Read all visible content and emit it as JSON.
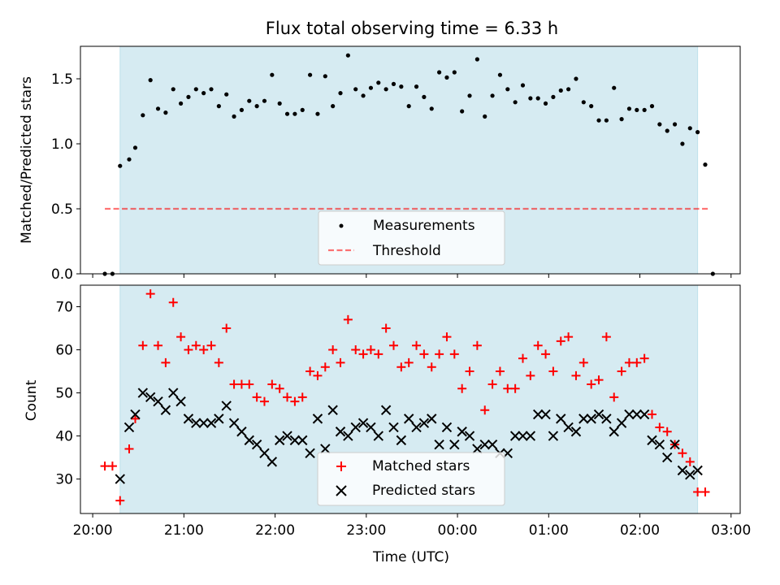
{
  "figure": {
    "title": "Flux total observing time = 6.33 h",
    "xlabel": "Time (UTC)",
    "colors": {
      "shade": "#add8e6",
      "measurement": "#000000",
      "threshold": "#ff0000",
      "matched": "#ff0000",
      "predicted": "#000000"
    }
  },
  "chart_data": [
    {
      "type": "scatter",
      "xaxis": "UTC time; values in hours since 20:00 (values > 4 wrap past midnight)",
      "ylabel": "Matched/Predicted stars",
      "ylim": [
        0,
        1.75
      ],
      "yticks": [
        "0.0",
        "0.5",
        "1.0",
        "1.5"
      ],
      "grid": false,
      "legend_position": "lower center",
      "shaded_interval": [
        "20:18",
        "02:38"
      ],
      "threshold": {
        "name": "Threshold",
        "value": 0.5,
        "style": "dashed",
        "x_range": [
          "20:08",
          "02:45"
        ]
      },
      "series": [
        {
          "name": "Measurements",
          "points": [
            [
              "20:08",
              0.0
            ],
            [
              "20:13",
              0.0
            ],
            [
              "20:18",
              0.83
            ],
            [
              "20:24",
              0.88
            ],
            [
              "20:28",
              0.97
            ],
            [
              "20:33",
              1.22
            ],
            [
              "20:38",
              1.49
            ],
            [
              "20:43",
              1.27
            ],
            [
              "20:48",
              1.24
            ],
            [
              "20:53",
              1.42
            ],
            [
              "20:58",
              1.31
            ],
            [
              "21:03",
              1.36
            ],
            [
              "21:08",
              1.42
            ],
            [
              "21:13",
              1.39
            ],
            [
              "21:18",
              1.42
            ],
            [
              "21:23",
              1.29
            ],
            [
              "21:28",
              1.38
            ],
            [
              "21:33",
              1.21
            ],
            [
              "21:38",
              1.26
            ],
            [
              "21:43",
              1.33
            ],
            [
              "21:48",
              1.29
            ],
            [
              "21:53",
              1.33
            ],
            [
              "21:58",
              1.53
            ],
            [
              "22:03",
              1.31
            ],
            [
              "22:08",
              1.23
            ],
            [
              "22:13",
              1.23
            ],
            [
              "22:18",
              1.26
            ],
            [
              "22:23",
              1.53
            ],
            [
              "22:28",
              1.23
            ],
            [
              "22:33",
              1.52
            ],
            [
              "22:38",
              1.29
            ],
            [
              "22:43",
              1.39
            ],
            [
              "22:48",
              1.68
            ],
            [
              "22:53",
              1.42
            ],
            [
              "22:58",
              1.37
            ],
            [
              "23:03",
              1.43
            ],
            [
              "23:08",
              1.47
            ],
            [
              "23:13",
              1.42
            ],
            [
              "23:18",
              1.46
            ],
            [
              "23:23",
              1.44
            ],
            [
              "23:28",
              1.29
            ],
            [
              "23:33",
              1.44
            ],
            [
              "23:38",
              1.36
            ],
            [
              "23:43",
              1.27
            ],
            [
              "23:48",
              1.55
            ],
            [
              "23:53",
              1.51
            ],
            [
              "23:58",
              1.55
            ],
            [
              "00:03",
              1.25
            ],
            [
              "00:08",
              1.37
            ],
            [
              "00:13",
              1.65
            ],
            [
              "00:18",
              1.21
            ],
            [
              "00:23",
              1.37
            ],
            [
              "00:28",
              1.53
            ],
            [
              "00:33",
              1.42
            ],
            [
              "00:38",
              1.32
            ],
            [
              "00:43",
              1.45
            ],
            [
              "00:48",
              1.35
            ],
            [
              "00:53",
              1.35
            ],
            [
              "00:58",
              1.31
            ],
            [
              "01:03",
              1.36
            ],
            [
              "01:08",
              1.41
            ],
            [
              "01:13",
              1.42
            ],
            [
              "01:18",
              1.5
            ],
            [
              "01:23",
              1.32
            ],
            [
              "01:28",
              1.29
            ],
            [
              "01:33",
              1.18
            ],
            [
              "01:38",
              1.18
            ],
            [
              "01:43",
              1.43
            ],
            [
              "01:48",
              1.19
            ],
            [
              "01:53",
              1.27
            ],
            [
              "01:58",
              1.26
            ],
            [
              "02:03",
              1.26
            ],
            [
              "02:08",
              1.29
            ],
            [
              "02:13",
              1.15
            ],
            [
              "02:18",
              1.1
            ],
            [
              "02:23",
              1.15
            ],
            [
              "02:28",
              1.0
            ],
            [
              "02:33",
              1.12
            ],
            [
              "02:38",
              1.09
            ],
            [
              "02:43",
              0.84
            ],
            [
              "02:48",
              0.0
            ]
          ]
        }
      ]
    },
    {
      "type": "scatter",
      "xaxis": "UTC time; values in hours since 20:00",
      "xlabel": "Time (UTC)",
      "ylabel": "Count",
      "ylim": [
        22,
        75
      ],
      "yticks": [
        "30",
        "40",
        "50",
        "60",
        "70"
      ],
      "xticks": [
        "20:00",
        "21:00",
        "22:00",
        "23:00",
        "00:00",
        "01:00",
        "02:00",
        "03:00"
      ],
      "xlim": [
        "19:52",
        "03:04"
      ],
      "grid": false,
      "legend_position": "lower center",
      "shaded_interval": [
        "20:18",
        "02:38"
      ],
      "series": [
        {
          "name": "Matched stars",
          "marker": "+",
          "color": "#ff0000",
          "points": [
            [
              "20:08",
              33
            ],
            [
              "20:13",
              33
            ],
            [
              "20:18",
              25
            ],
            [
              "20:24",
              37
            ],
            [
              "20:28",
              44
            ],
            [
              "20:33",
              61
            ],
            [
              "20:38",
              73
            ],
            [
              "20:43",
              61
            ],
            [
              "20:48",
              57
            ],
            [
              "20:53",
              71
            ],
            [
              "20:58",
              63
            ],
            [
              "21:03",
              60
            ],
            [
              "21:08",
              61
            ],
            [
              "21:13",
              60
            ],
            [
              "21:18",
              61
            ],
            [
              "21:23",
              57
            ],
            [
              "21:28",
              65
            ],
            [
              "21:33",
              52
            ],
            [
              "21:38",
              52
            ],
            [
              "21:43",
              52
            ],
            [
              "21:48",
              49
            ],
            [
              "21:53",
              48
            ],
            [
              "21:58",
              52
            ],
            [
              "22:03",
              51
            ],
            [
              "22:08",
              49
            ],
            [
              "22:13",
              48
            ],
            [
              "22:18",
              49
            ],
            [
              "22:23",
              55
            ],
            [
              "22:28",
              54
            ],
            [
              "22:33",
              56
            ],
            [
              "22:38",
              60
            ],
            [
              "22:43",
              57
            ],
            [
              "22:48",
              67
            ],
            [
              "22:53",
              60
            ],
            [
              "22:58",
              59
            ],
            [
              "23:03",
              60
            ],
            [
              "23:08",
              59
            ],
            [
              "23:13",
              65
            ],
            [
              "23:18",
              61
            ],
            [
              "23:23",
              56
            ],
            [
              "23:28",
              57
            ],
            [
              "23:33",
              61
            ],
            [
              "23:38",
              59
            ],
            [
              "23:43",
              56
            ],
            [
              "23:48",
              59
            ],
            [
              "23:53",
              63
            ],
            [
              "23:58",
              59
            ],
            [
              "00:03",
              51
            ],
            [
              "00:08",
              55
            ],
            [
              "00:13",
              61
            ],
            [
              "00:18",
              46
            ],
            [
              "00:23",
              52
            ],
            [
              "00:28",
              55
            ],
            [
              "00:33",
              51
            ],
            [
              "00:38",
              51
            ],
            [
              "00:43",
              58
            ],
            [
              "00:48",
              54
            ],
            [
              "00:53",
              61
            ],
            [
              "00:58",
              59
            ],
            [
              "01:03",
              55
            ],
            [
              "01:08",
              62
            ],
            [
              "01:13",
              63
            ],
            [
              "01:18",
              54
            ],
            [
              "01:23",
              57
            ],
            [
              "01:28",
              52
            ],
            [
              "01:33",
              53
            ],
            [
              "01:38",
              63
            ],
            [
              "01:43",
              49
            ],
            [
              "01:48",
              55
            ],
            [
              "01:53",
              57
            ],
            [
              "01:58",
              57
            ],
            [
              "02:03",
              58
            ],
            [
              "02:08",
              45
            ],
            [
              "02:13",
              42
            ],
            [
              "02:18",
              41
            ],
            [
              "02:23",
              38
            ],
            [
              "02:28",
              36
            ],
            [
              "02:33",
              34
            ],
            [
              "02:38",
              27
            ],
            [
              "02:43",
              27
            ]
          ]
        },
        {
          "name": "Predicted stars",
          "marker": "x",
          "color": "#000000",
          "points": [
            [
              "20:18",
              30
            ],
            [
              "20:24",
              42
            ],
            [
              "20:28",
              45
            ],
            [
              "20:33",
              50
            ],
            [
              "20:38",
              49
            ],
            [
              "20:43",
              48
            ],
            [
              "20:48",
              46
            ],
            [
              "20:53",
              50
            ],
            [
              "20:58",
              48
            ],
            [
              "21:03",
              44
            ],
            [
              "21:08",
              43
            ],
            [
              "21:13",
              43
            ],
            [
              "21:18",
              43
            ],
            [
              "21:23",
              44
            ],
            [
              "21:28",
              47
            ],
            [
              "21:33",
              43
            ],
            [
              "21:38",
              41
            ],
            [
              "21:43",
              39
            ],
            [
              "21:48",
              38
            ],
            [
              "21:53",
              36
            ],
            [
              "21:58",
              34
            ],
            [
              "22:03",
              39
            ],
            [
              "22:08",
              40
            ],
            [
              "22:13",
              39
            ],
            [
              "22:18",
              39
            ],
            [
              "22:23",
              36
            ],
            [
              "22:28",
              44
            ],
            [
              "22:33",
              37
            ],
            [
              "22:38",
              46
            ],
            [
              "22:43",
              41
            ],
            [
              "22:48",
              40
            ],
            [
              "22:53",
              42
            ],
            [
              "22:58",
              43
            ],
            [
              "23:03",
              42
            ],
            [
              "23:08",
              40
            ],
            [
              "23:13",
              46
            ],
            [
              "23:18",
              42
            ],
            [
              "23:23",
              39
            ],
            [
              "23:28",
              44
            ],
            [
              "23:33",
              42
            ],
            [
              "23:38",
              43
            ],
            [
              "23:43",
              44
            ],
            [
              "23:48",
              38
            ],
            [
              "23:53",
              42
            ],
            [
              "23:58",
              38
            ],
            [
              "00:03",
              41
            ],
            [
              "00:08",
              40
            ],
            [
              "00:13",
              37
            ],
            [
              "00:18",
              38
            ],
            [
              "00:23",
              38
            ],
            [
              "00:28",
              36
            ],
            [
              "00:33",
              36
            ],
            [
              "00:38",
              40
            ],
            [
              "00:43",
              40
            ],
            [
              "00:48",
              40
            ],
            [
              "00:53",
              45
            ],
            [
              "00:58",
              45
            ],
            [
              "01:03",
              40
            ],
            [
              "01:08",
              44
            ],
            [
              "01:13",
              42
            ],
            [
              "01:18",
              41
            ],
            [
              "01:23",
              44
            ],
            [
              "01:28",
              44
            ],
            [
              "01:33",
              45
            ],
            [
              "01:38",
              44
            ],
            [
              "01:43",
              41
            ],
            [
              "01:48",
              43
            ],
            [
              "01:53",
              45
            ],
            [
              "01:58",
              45
            ],
            [
              "02:03",
              45
            ],
            [
              "02:08",
              39
            ],
            [
              "02:13",
              38
            ],
            [
              "02:18",
              35
            ],
            [
              "02:23",
              38
            ],
            [
              "02:28",
              32
            ],
            [
              "02:33",
              31
            ],
            [
              "02:38",
              32
            ]
          ]
        }
      ]
    }
  ]
}
